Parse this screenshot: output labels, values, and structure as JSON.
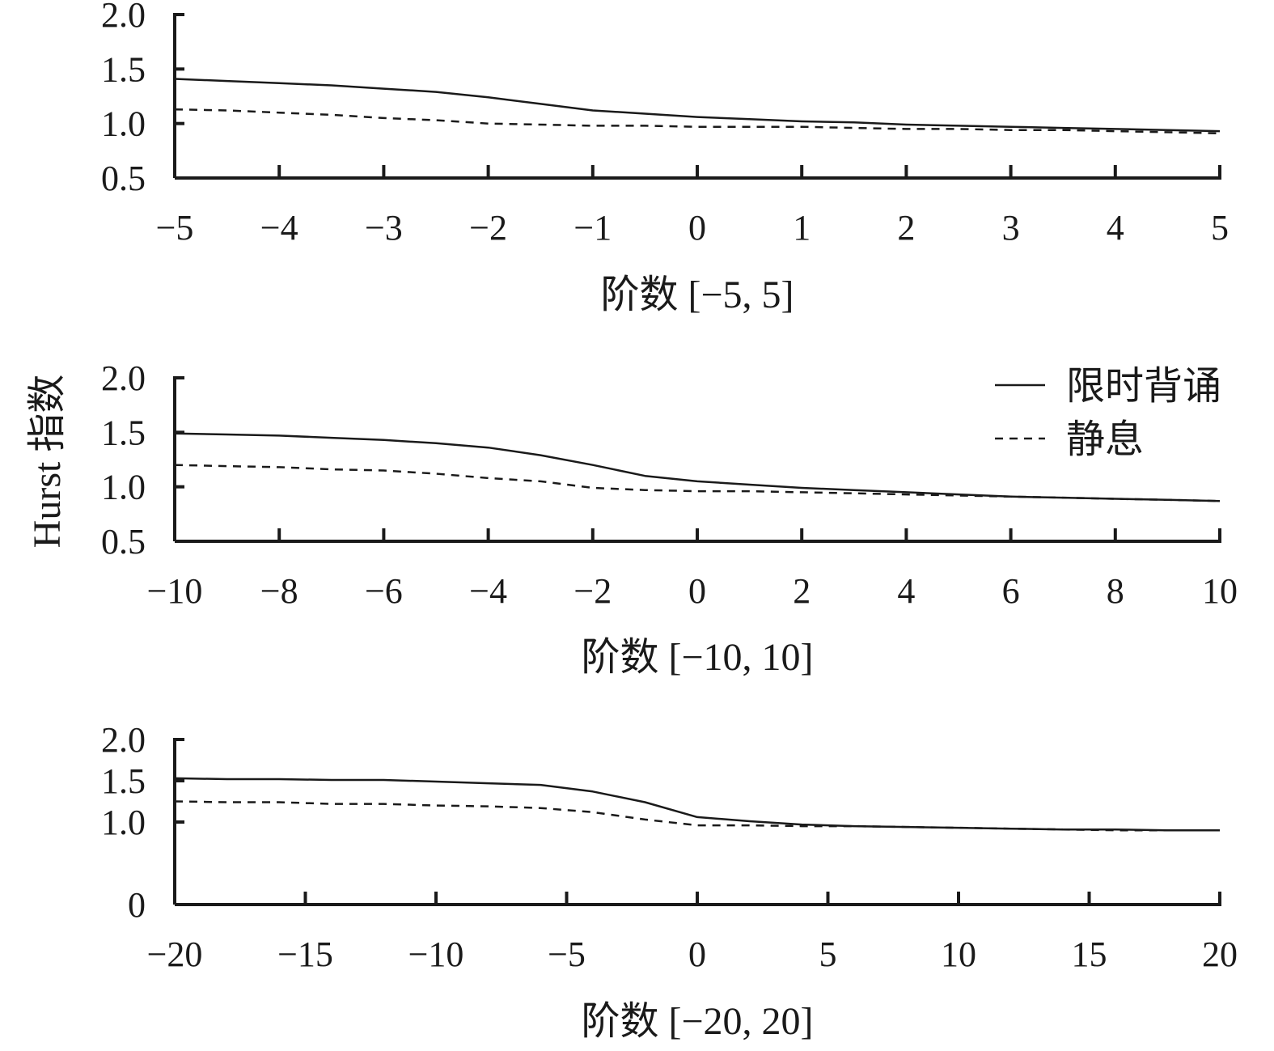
{
  "ylabel": "Hurst 指数",
  "legend": [
    {
      "label": "限时背诵",
      "style": "solid"
    },
    {
      "label": "静息",
      "style": "dashed"
    }
  ],
  "chart_data": [
    {
      "type": "line",
      "xlabel": "阶数 [−5, 5]",
      "xlim": [
        -5,
        5
      ],
      "ylim": [
        0.5,
        2.0
      ],
      "x_ticks": [
        -5,
        -4,
        -3,
        -2,
        -1,
        0,
        1,
        2,
        3,
        4,
        5
      ],
      "x_tick_labels": [
        "−5",
        "−4",
        "−3",
        "−2",
        "−1",
        "0",
        "1",
        "2",
        "3",
        "4",
        "5"
      ],
      "y_ticks": [
        0.5,
        1.0,
        1.5,
        2.0
      ],
      "y_tick_labels": [
        "0.5",
        "1.0",
        "1.5",
        "2.0"
      ],
      "series": [
        {
          "name": "限时背诵",
          "style": "solid",
          "x": [
            -5,
            -4.5,
            -4,
            -3.5,
            -3,
            -2.5,
            -2,
            -1.5,
            -1,
            -0.5,
            0,
            0.5,
            1,
            1.5,
            2,
            2.5,
            3,
            3.5,
            4,
            4.5,
            5
          ],
          "y": [
            1.41,
            1.39,
            1.37,
            1.35,
            1.32,
            1.29,
            1.24,
            1.18,
            1.12,
            1.09,
            1.06,
            1.04,
            1.02,
            1.01,
            0.99,
            0.98,
            0.97,
            0.96,
            0.95,
            0.94,
            0.93
          ]
        },
        {
          "name": "静息",
          "style": "dashed",
          "x": [
            -5,
            -4.5,
            -4,
            -3.5,
            -3,
            -2.5,
            -2,
            -1.5,
            -1,
            -0.5,
            0,
            0.5,
            1,
            1.5,
            2,
            2.5,
            3,
            3.5,
            4,
            4.5,
            5
          ],
          "y": [
            1.13,
            1.12,
            1.1,
            1.08,
            1.05,
            1.03,
            1.0,
            0.99,
            0.98,
            0.98,
            0.97,
            0.97,
            0.97,
            0.96,
            0.95,
            0.95,
            0.94,
            0.94,
            0.93,
            0.92,
            0.91
          ]
        }
      ]
    },
    {
      "type": "line",
      "xlabel": "阶数 [−10, 10]",
      "xlim": [
        -10,
        10
      ],
      "ylim": [
        0.5,
        2.0
      ],
      "x_ticks": [
        -10,
        -8,
        -6,
        -4,
        -2,
        0,
        2,
        4,
        6,
        8,
        10
      ],
      "x_tick_labels": [
        "−10",
        "−8",
        "−6",
        "−4",
        "−2",
        "0",
        "2",
        "4",
        "6",
        "8",
        "10"
      ],
      "y_ticks": [
        0.5,
        1.0,
        1.5,
        2.0
      ],
      "y_tick_labels": [
        "0.5",
        "1.0",
        "1.5",
        "2.0"
      ],
      "series": [
        {
          "name": "限时背诵",
          "style": "solid",
          "x": [
            -10,
            -9,
            -8,
            -7,
            -6,
            -5,
            -4,
            -3,
            -2,
            -1,
            0,
            1,
            2,
            3,
            4,
            5,
            6,
            7,
            8,
            9,
            10
          ],
          "y": [
            1.49,
            1.48,
            1.47,
            1.45,
            1.43,
            1.4,
            1.36,
            1.29,
            1.2,
            1.1,
            1.05,
            1.02,
            0.99,
            0.97,
            0.95,
            0.93,
            0.91,
            0.9,
            0.89,
            0.88,
            0.87
          ]
        },
        {
          "name": "静息",
          "style": "dashed",
          "x": [
            -10,
            -9,
            -8,
            -7,
            -6,
            -5,
            -4,
            -3,
            -2,
            -1,
            0,
            1,
            2,
            3,
            4,
            5,
            6,
            7,
            8,
            9,
            10
          ],
          "y": [
            1.2,
            1.19,
            1.18,
            1.16,
            1.15,
            1.12,
            1.08,
            1.05,
            0.99,
            0.97,
            0.96,
            0.96,
            0.95,
            0.94,
            0.93,
            0.92,
            0.91,
            0.9,
            0.89,
            0.88,
            0.87
          ]
        }
      ]
    },
    {
      "type": "line",
      "xlabel": "阶数 [−20, 20]",
      "xlim": [
        -20,
        20
      ],
      "ylim": [
        0,
        2.0
      ],
      "x_ticks": [
        -20,
        -15,
        -10,
        -5,
        0,
        5,
        10,
        15,
        20
      ],
      "x_tick_labels": [
        "−20",
        "−15",
        "−10",
        "−5",
        "0",
        "5",
        "10",
        "15",
        "20"
      ],
      "y_ticks": [
        0,
        1.0,
        1.5,
        2.0
      ],
      "y_tick_labels": [
        "0",
        "1.0",
        "1.5",
        "2.0"
      ],
      "series": [
        {
          "name": "限时背诵",
          "style": "solid",
          "x": [
            -20,
            -18,
            -16,
            -14,
            -12,
            -10,
            -8,
            -6,
            -4,
            -2,
            0,
            2,
            4,
            6,
            8,
            10,
            12,
            14,
            16,
            18,
            20
          ],
          "y": [
            1.53,
            1.52,
            1.52,
            1.51,
            1.51,
            1.49,
            1.47,
            1.45,
            1.37,
            1.24,
            1.06,
            1.01,
            0.97,
            0.95,
            0.94,
            0.93,
            0.92,
            0.91,
            0.91,
            0.9,
            0.9
          ]
        },
        {
          "name": "静息",
          "style": "dashed",
          "x": [
            -20,
            -18,
            -16,
            -14,
            -12,
            -10,
            -8,
            -6,
            -4,
            -2,
            0,
            2,
            4,
            6,
            8,
            10,
            12,
            14,
            16,
            18,
            20
          ],
          "y": [
            1.25,
            1.24,
            1.24,
            1.22,
            1.22,
            1.2,
            1.19,
            1.17,
            1.12,
            1.03,
            0.96,
            0.96,
            0.95,
            0.95,
            0.94,
            0.93,
            0.92,
            0.91,
            0.9,
            0.9,
            0.9
          ]
        }
      ]
    }
  ]
}
